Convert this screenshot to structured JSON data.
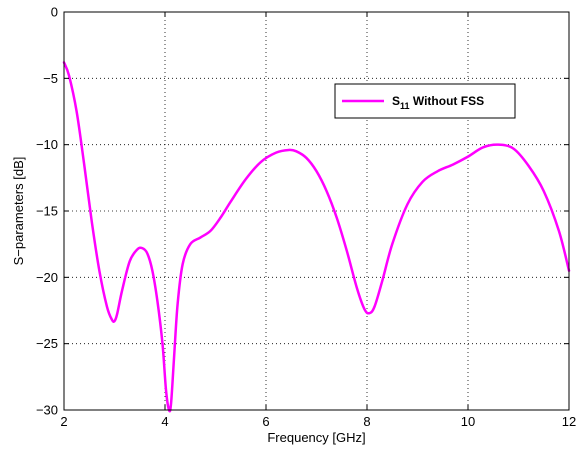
{
  "chart_data": {
    "type": "line",
    "title": "",
    "xlabel": "Frequency [GHz]",
    "ylabel": "S−parameters [dB]",
    "xlim": [
      2,
      12
    ],
    "ylim": [
      -30,
      0
    ],
    "xticks": [
      2,
      4,
      6,
      8,
      10,
      12
    ],
    "yticks": [
      0,
      -5,
      -10,
      -15,
      -20,
      -25,
      -30
    ],
    "xtick_labels": [
      "2",
      "4",
      "6",
      "8",
      "10",
      "12"
    ],
    "ytick_labels": [
      "0",
      "−5",
      "−10",
      "−15",
      "−20",
      "−25",
      "−30"
    ],
    "grid": true,
    "grid_style": "dotted",
    "legend": {
      "placement": "top-right",
      "entries": [
        {
          "main": "S",
          "subscript": "11",
          "suffix": " Without FSS"
        }
      ]
    },
    "series": [
      {
        "color": "#ff00ff",
        "x": [
          2.0,
          2.1,
          2.25,
          2.4,
          2.55,
          2.7,
          2.85,
          2.95,
          3.0,
          3.05,
          3.15,
          3.3,
          3.45,
          3.55,
          3.65,
          3.75,
          3.85,
          3.95,
          4.02,
          4.08,
          4.12,
          4.18,
          4.25,
          4.35,
          4.5,
          4.7,
          4.9,
          5.1,
          5.3,
          5.6,
          5.9,
          6.2,
          6.45,
          6.6,
          6.8,
          7.0,
          7.2,
          7.4,
          7.6,
          7.8,
          7.95,
          8.05,
          8.15,
          8.3,
          8.5,
          8.8,
          9.1,
          9.4,
          9.7,
          10.0,
          10.3,
          10.6,
          10.9,
          11.2,
          11.5,
          11.8,
          12.0
        ],
        "y": [
          -3.8,
          -4.8,
          -7.5,
          -11.5,
          -15.8,
          -19.5,
          -22.2,
          -23.2,
          -23.3,
          -22.8,
          -21.0,
          -18.8,
          -17.9,
          -17.8,
          -18.2,
          -19.5,
          -21.8,
          -25.0,
          -28.5,
          -30.0,
          -29.5,
          -26.0,
          -22.0,
          -19.0,
          -17.5,
          -17.0,
          -16.5,
          -15.5,
          -14.3,
          -12.6,
          -11.3,
          -10.6,
          -10.4,
          -10.5,
          -11.0,
          -12.0,
          -13.5,
          -15.5,
          -18.0,
          -20.8,
          -22.4,
          -22.7,
          -22.2,
          -20.3,
          -17.5,
          -14.5,
          -12.8,
          -12.0,
          -11.5,
          -10.9,
          -10.2,
          -10.0,
          -10.3,
          -11.6,
          -13.5,
          -16.5,
          -19.5
        ]
      }
    ]
  }
}
